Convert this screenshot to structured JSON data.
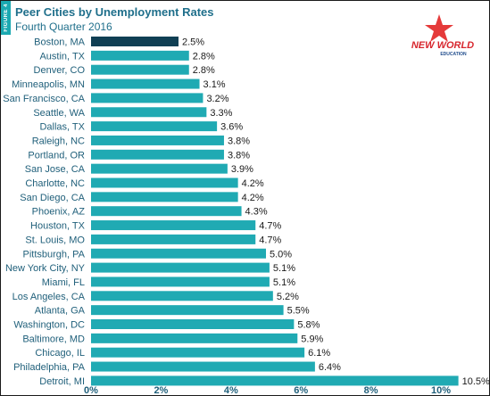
{
  "figure_tag": "FIGURE 4",
  "logo": {
    "line1": "NEW WORLD",
    "line2": "EDUCATION"
  },
  "colors": {
    "bar": "#20aab3",
    "highlight": "#103f54",
    "title": "#1f6f8b",
    "star": "#e53a3a"
  },
  "chart_data": {
    "type": "bar",
    "orientation": "horizontal",
    "title": "Peer Cities by Unemployment Rates",
    "subtitle": "Fourth Quarter 2016",
    "categories": [
      "Boston, MA",
      "Austin, TX",
      "Denver, CO",
      "Minneapolis, MN",
      "San Francisco, CA",
      "Seattle, WA",
      "Dallas, TX",
      "Raleigh, NC",
      "Portland, OR",
      "San Jose, CA",
      "Charlotte, NC",
      "San Diego, CA",
      "Phoenix, AZ",
      "Houston, TX",
      "St. Louis, MO",
      "Pittsburgh, PA",
      "New York City, NY",
      "Miami, FL",
      "Los Angeles, CA",
      "Atlanta, GA",
      "Washington, DC",
      "Baltimore, MD",
      "Chicago, IL",
      "Philadelphia, PA",
      "Detroit, MI"
    ],
    "values": [
      2.5,
      2.8,
      2.8,
      3.1,
      3.2,
      3.3,
      3.6,
      3.8,
      3.8,
      3.9,
      4.2,
      4.2,
      4.3,
      4.7,
      4.7,
      5.0,
      5.1,
      5.1,
      5.2,
      5.5,
      5.8,
      5.9,
      6.1,
      6.4,
      10.5
    ],
    "value_labels": [
      "2.5%",
      "2.8%",
      "2.8%",
      "3.1%",
      "3.2%",
      "3.3%",
      "3.6%",
      "3.8%",
      "3.8%",
      "3.9%",
      "4.2%",
      "4.2%",
      "4.3%",
      "4.7%",
      "4.7%",
      "5.0%",
      "5.1%",
      "5.1%",
      "5.2%",
      "5.5%",
      "5.8%",
      "5.9%",
      "6.1%",
      "6.4%",
      "10.5%"
    ],
    "highlight_category": "Boston, MA",
    "xlim": [
      0,
      11
    ],
    "xticks": [
      0,
      2,
      4,
      6,
      8,
      10
    ],
    "xtick_labels": [
      "0%",
      "2%",
      "4%",
      "6%",
      "8%",
      "10%"
    ],
    "xlabel": "",
    "ylabel": "",
    "grid": false,
    "legend": "none"
  }
}
